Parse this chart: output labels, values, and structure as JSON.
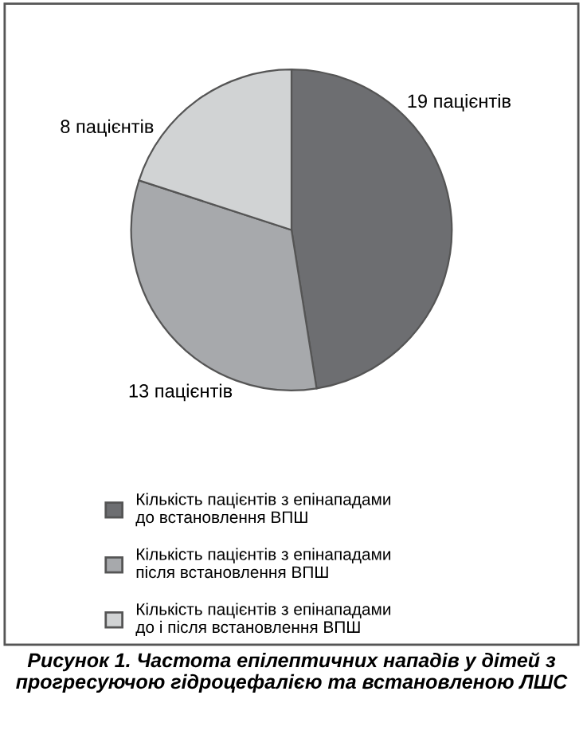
{
  "chart_data": {
    "type": "pie",
    "categories": [
      "Кількість пацієнтів з епінападами\nдо встановлення ВПШ",
      "Кількість пацієнтів з епінападами\nпісля встановлення ВПШ",
      "Кількість пацієнтів з епінападами\nдо і після встановлення ВПШ"
    ],
    "values": [
      19,
      13,
      8
    ],
    "colors": [
      "#6d6e71",
      "#a7a9ac",
      "#d1d3d4"
    ],
    "value_labels": [
      "19 пацієнтів",
      "13 пацієнтів",
      "8 пацієнтів"
    ],
    "legend": "bottom",
    "annotations": [
      "Рисунок 1. Частота епілептичних нападів у дітей з прогресуючою гідроцефалією та встановленою ЛШС"
    ]
  }
}
